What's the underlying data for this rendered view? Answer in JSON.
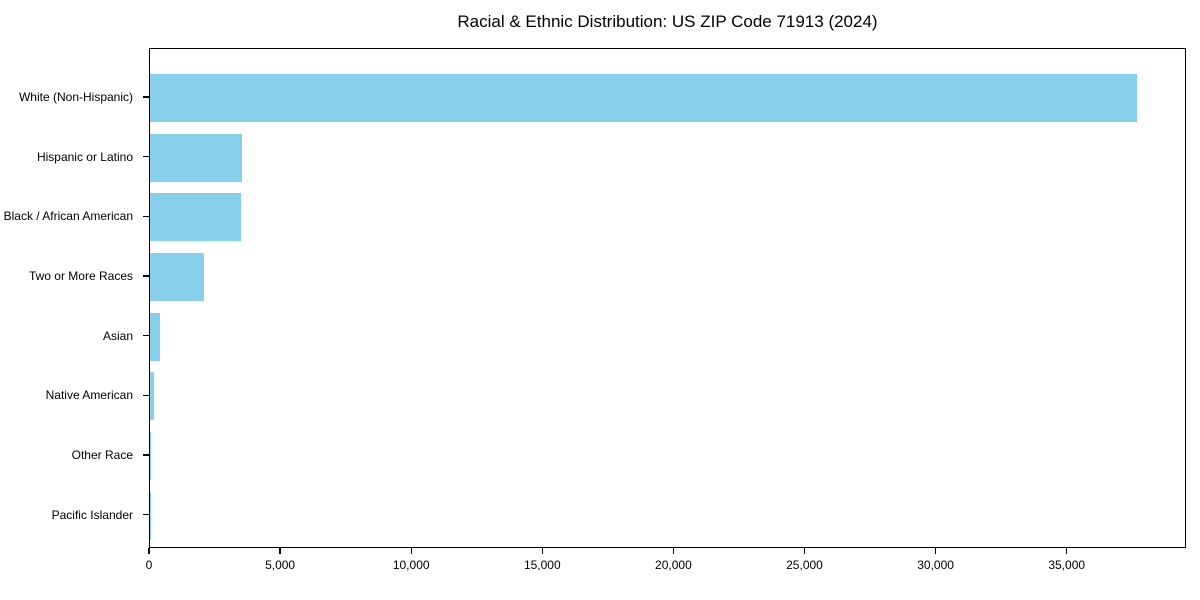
{
  "chart_data": {
    "type": "bar",
    "orientation": "horizontal",
    "title": "Racial & Ethnic Distribution: US ZIP Code 71913 (2024)",
    "categories": [
      "White (Non-Hispanic)",
      "Hispanic or Latino",
      "Black / African American",
      "Two or More Races",
      "Asian",
      "Native American",
      "Other Race",
      "Pacific Islander"
    ],
    "values": [
      37660,
      3500,
      3460,
      2050,
      380,
      165,
      40,
      15
    ],
    "xlabel": "",
    "ylabel": "",
    "xlim": [
      0,
      39550
    ],
    "xtick_values": [
      0,
      5000,
      10000,
      15000,
      20000,
      25000,
      30000,
      35000
    ],
    "xtick_labels": [
      "0",
      "5,000",
      "10,000",
      "15,000",
      "20,000",
      "25,000",
      "30,000",
      "35,000"
    ],
    "bar_color": "#87CEEB",
    "grid": "off",
    "legend": "none"
  }
}
